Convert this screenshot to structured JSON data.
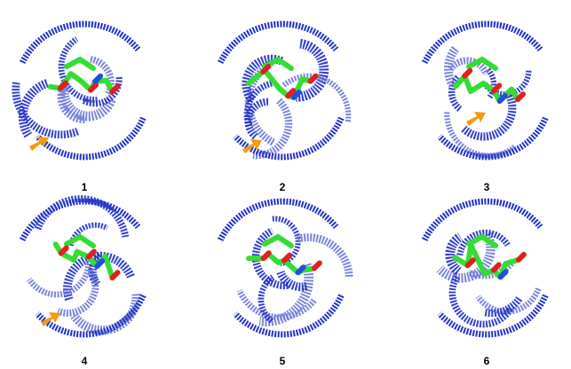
{
  "panels": [
    {
      "label": "1"
    },
    {
      "label": "2"
    },
    {
      "label": "3"
    },
    {
      "label": "4"
    },
    {
      "label": "5"
    },
    {
      "label": "6"
    }
  ]
}
